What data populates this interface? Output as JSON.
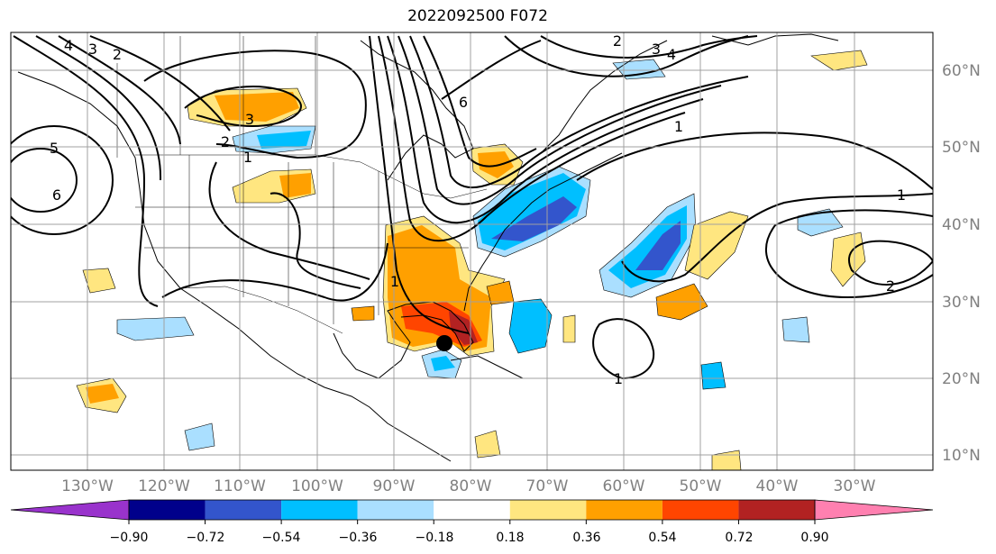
{
  "title": "2022092500 F072",
  "latitude_labels": [
    "60°N",
    "50°N",
    "40°N",
    "30°N",
    "20°N",
    "10°N"
  ],
  "longitude_labels": [
    "130°W",
    "120°W",
    "110°W",
    "100°W",
    "90°W",
    "80°W",
    "70°W",
    "60°W",
    "50°W",
    "40°W",
    "30°W"
  ],
  "colorbar": {
    "colors": [
      "#9933cc",
      "#00008b",
      "#3355cc",
      "#00bfff",
      "#aadfff",
      "#ffffff",
      "#ffe680",
      "#ffa000",
      "#ff4500",
      "#b22222",
      "#ff80b0"
    ],
    "tick_labels": [
      "−0.90",
      "−0.72",
      "−0.54",
      "−0.36",
      "−0.18",
      "0.18",
      "0.36",
      "0.54",
      "0.72",
      "0.90"
    ]
  },
  "contour_labels": [
    "4",
    "3",
    "2",
    "5",
    "6",
    "3",
    "2",
    "1",
    "6",
    "2",
    "3",
    "4",
    "1",
    "1",
    "2",
    "1",
    "1"
  ],
  "storm_marker": "black-dot",
  "colors": {
    "contour": "#000000",
    "grid": "#a0a0a0",
    "coast": "#000000"
  }
}
